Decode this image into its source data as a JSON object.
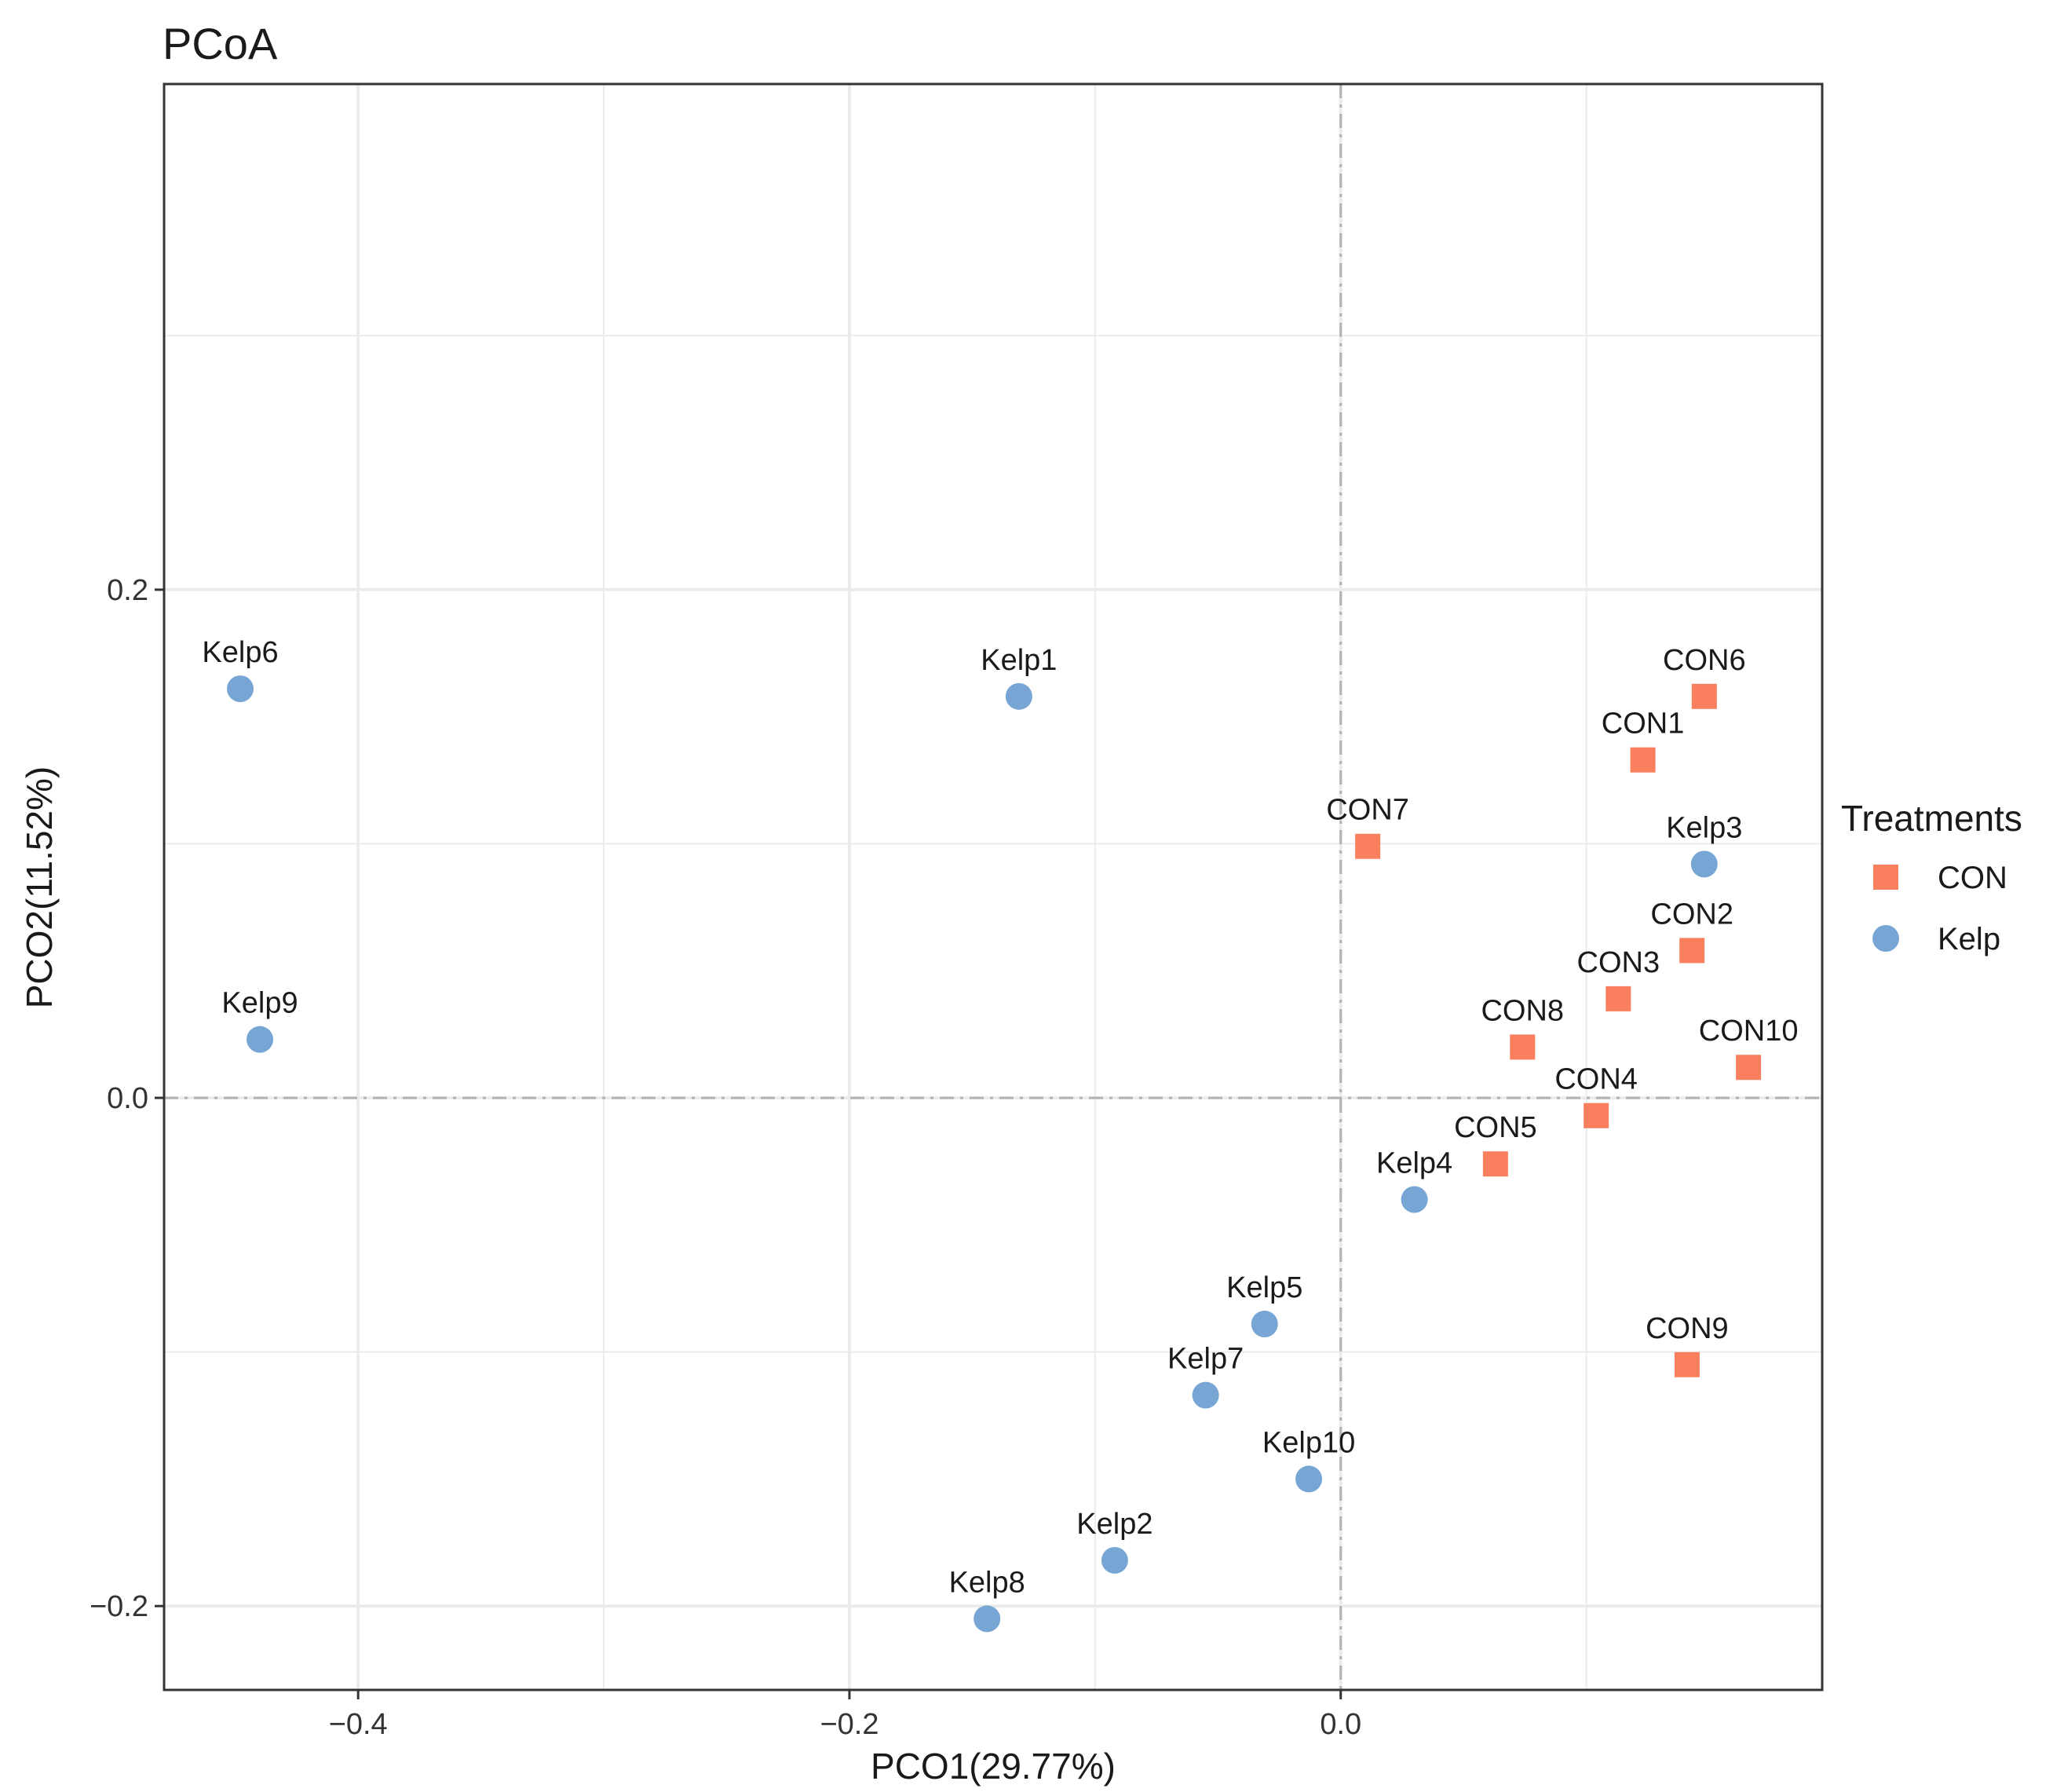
{
  "chart_data": {
    "type": "scatter",
    "title": "PCoA",
    "xlabel": "PCO1(29.77%)",
    "ylabel": "PCO2(11.52%)",
    "xlim": [
      -0.479,
      0.196
    ],
    "ylim": [
      -0.233,
      0.399
    ],
    "xticks": [
      -0.4,
      -0.2,
      0.0
    ],
    "yticks": [
      -0.2,
      0.0,
      0.2
    ],
    "xtick_labels": [
      "−0.4",
      "−0.2",
      "0.0"
    ],
    "ytick_labels": [
      "−0.2",
      "0.0",
      "0.2"
    ],
    "grid": true,
    "reference_lines": {
      "x": 0.0,
      "y": 0.0
    },
    "legend": {
      "title": "Treatments",
      "position": "right",
      "entries": [
        {
          "label": "CON",
          "shape": "square",
          "color": "#FA7F5F"
        },
        {
          "label": "Kelp",
          "shape": "circle",
          "color": "#77A6D4"
        }
      ]
    },
    "series": [
      {
        "name": "CON",
        "shape": "square",
        "color": "#FA7F5F",
        "points": [
          {
            "label": "CON1",
            "x": 0.123,
            "y": 0.133
          },
          {
            "label": "CON2",
            "x": 0.143,
            "y": 0.058
          },
          {
            "label": "CON3",
            "x": 0.113,
            "y": 0.039
          },
          {
            "label": "CON4",
            "x": 0.104,
            "y": -0.007
          },
          {
            "label": "CON5",
            "x": 0.063,
            "y": -0.026
          },
          {
            "label": "CON6",
            "x": 0.148,
            "y": 0.158
          },
          {
            "label": "CON7",
            "x": 0.011,
            "y": 0.099
          },
          {
            "label": "CON8",
            "x": 0.074,
            "y": 0.02
          },
          {
            "label": "CON9",
            "x": 0.141,
            "y": -0.105
          },
          {
            "label": "CON10",
            "x": 0.166,
            "y": 0.012
          }
        ]
      },
      {
        "name": "Kelp",
        "shape": "circle",
        "color": "#77A6D4",
        "points": [
          {
            "label": "Kelp1",
            "x": -0.131,
            "y": 0.158
          },
          {
            "label": "Kelp2",
            "x": -0.092,
            "y": -0.182
          },
          {
            "label": "Kelp3",
            "x": 0.148,
            "y": 0.092
          },
          {
            "label": "Kelp4",
            "x": 0.03,
            "y": -0.04
          },
          {
            "label": "Kelp5",
            "x": -0.031,
            "y": -0.089
          },
          {
            "label": "Kelp6",
            "x": -0.448,
            "y": 0.161
          },
          {
            "label": "Kelp7",
            "x": -0.055,
            "y": -0.117
          },
          {
            "label": "Kelp8",
            "x": -0.144,
            "y": -0.205
          },
          {
            "label": "Kelp9",
            "x": -0.44,
            "y": 0.023
          },
          {
            "label": "Kelp10",
            "x": -0.013,
            "y": -0.15
          }
        ]
      }
    ]
  }
}
